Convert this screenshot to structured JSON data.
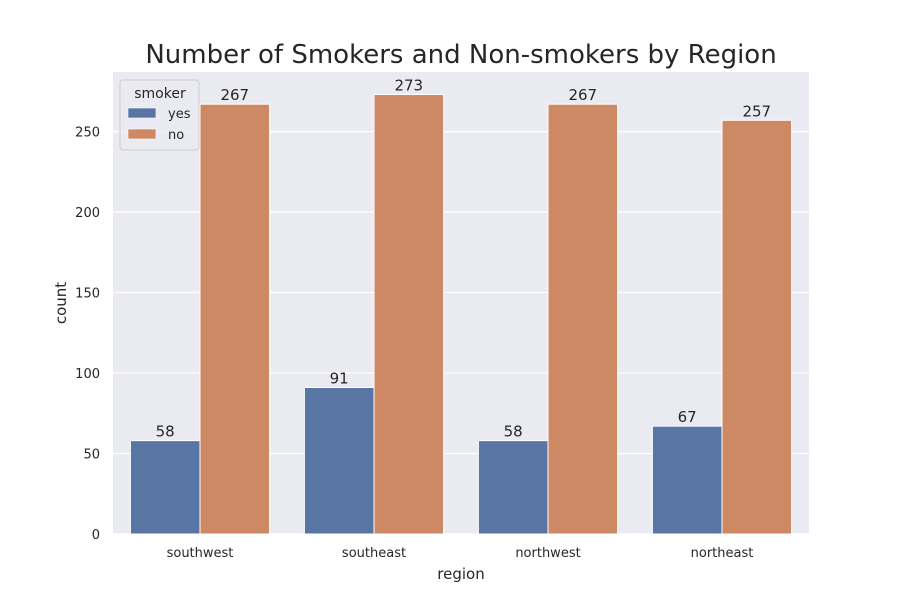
{
  "chart_data": {
    "type": "bar",
    "title": "Number of Smokers and Non-smokers by Region",
    "xlabel": "region",
    "ylabel": "count",
    "categories": [
      "southwest",
      "southeast",
      "northwest",
      "northeast"
    ],
    "series": [
      {
        "name": "yes",
        "values": [
          58,
          91,
          58,
          67
        ],
        "color": "#5875a4"
      },
      {
        "name": "no",
        "values": [
          267,
          273,
          267,
          257
        ],
        "color": "#cc8963"
      }
    ],
    "ylim": [
      0,
      287
    ],
    "yticks": [
      0,
      50,
      100,
      150,
      200,
      250
    ],
    "grid": true,
    "legend": {
      "title": "smoker",
      "position": "top-left"
    },
    "style": {
      "plot_background": "#eaeaf2",
      "grid_color": "#ffffff"
    }
  }
}
